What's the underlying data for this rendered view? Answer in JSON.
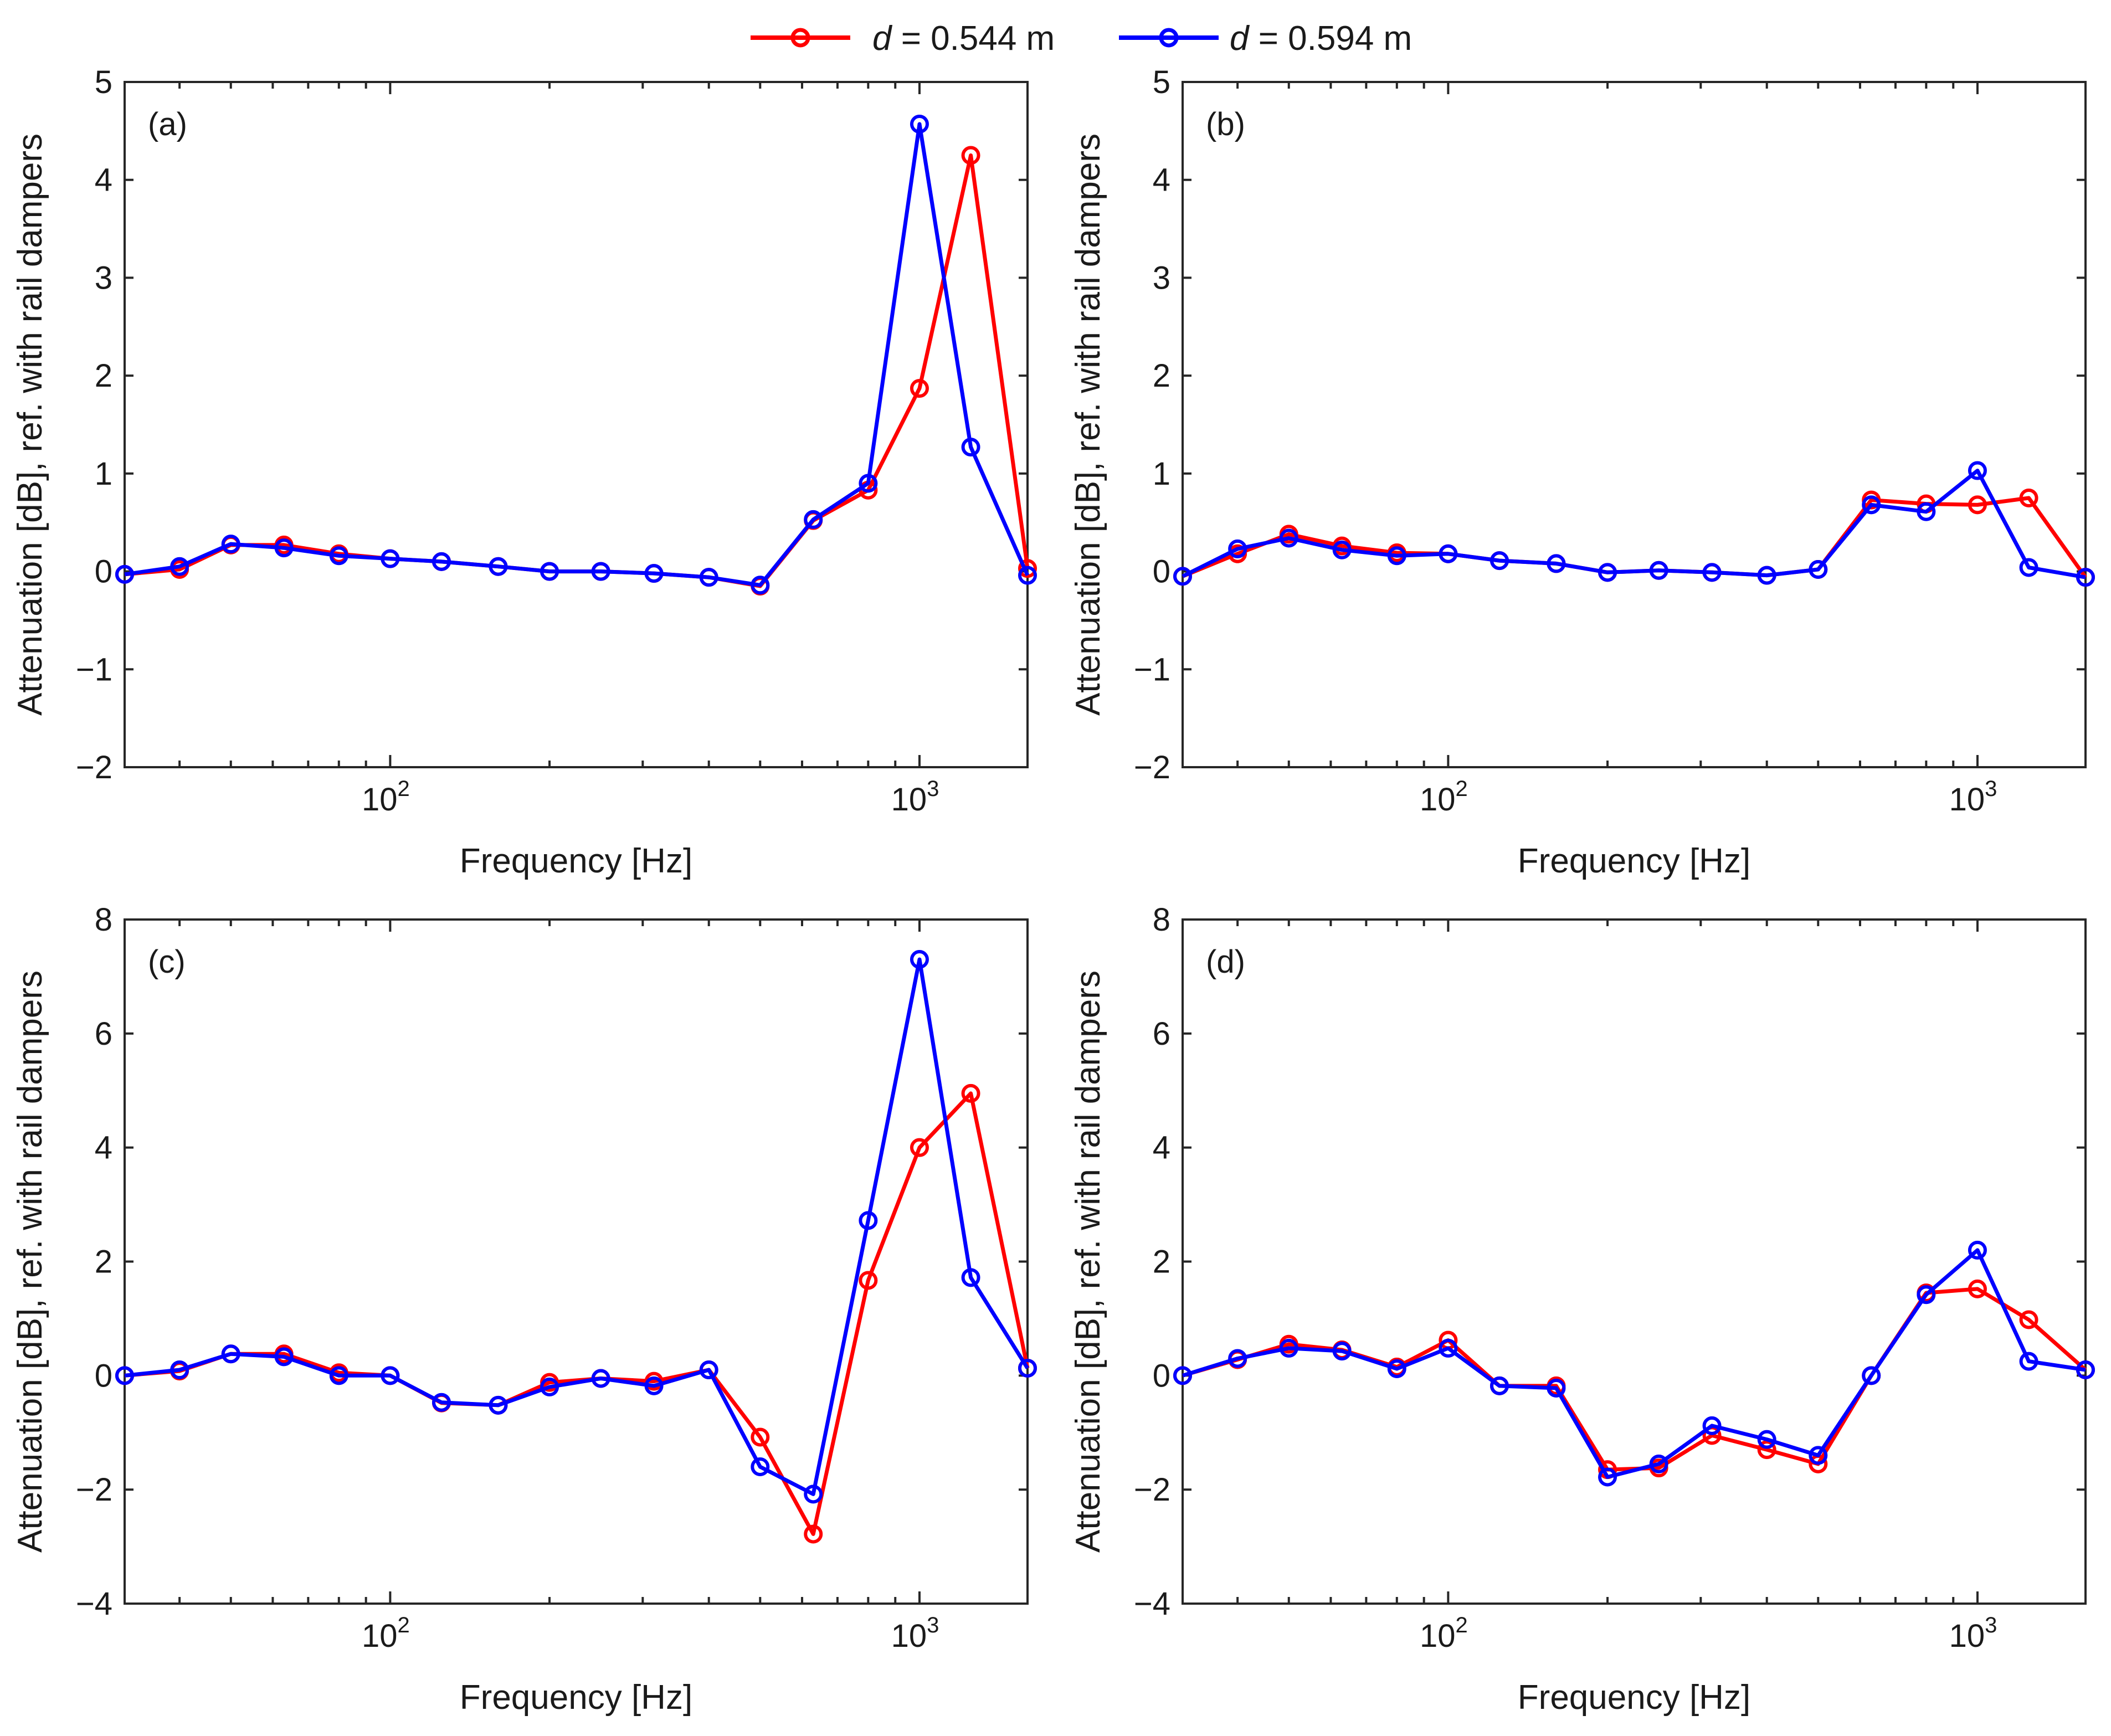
{
  "legend": {
    "entries": [
      {
        "prefix": "d",
        "label": " = 0.544 m",
        "color": "#ff0000"
      },
      {
        "prefix": "d",
        "label": " = 0.594 m",
        "color": "#0000ff"
      }
    ]
  },
  "chart_data": [
    {
      "type": "line",
      "panel_label": "(a)",
      "xlabel": "Frequency [Hz]",
      "ylabel": "Attenuation [dB], ref. with rail dampers",
      "xscale": "log",
      "xlim": [
        31.5,
        1600
      ],
      "ylim": [
        -2,
        5
      ],
      "yticks": [
        -2,
        -1,
        0,
        1,
        2,
        3,
        4,
        5
      ],
      "xticks": [
        {
          "value": 100,
          "base": "10",
          "exp": "2"
        },
        {
          "value": 1000,
          "base": "10",
          "exp": "3"
        }
      ],
      "x": [
        31.5,
        40,
        50,
        63,
        80,
        100,
        125,
        160,
        200,
        250,
        315,
        400,
        500,
        630,
        800,
        1000,
        1250,
        1600
      ],
      "series": [
        {
          "name": "d = 0.544 m",
          "color": "#ff0000",
          "values": [
            -0.03,
            0.02,
            0.27,
            0.27,
            0.18,
            0.13,
            0.1,
            0.05,
            0.0,
            0.0,
            -0.02,
            -0.06,
            -0.15,
            0.52,
            0.83,
            1.87,
            4.25,
            0.03
          ]
        },
        {
          "name": "d = 0.594 m",
          "color": "#0000ff",
          "values": [
            -0.03,
            0.05,
            0.28,
            0.24,
            0.16,
            0.13,
            0.1,
            0.05,
            0.0,
            0.0,
            -0.02,
            -0.06,
            -0.14,
            0.53,
            0.9,
            4.57,
            1.27,
            -0.04
          ]
        }
      ]
    },
    {
      "type": "line",
      "panel_label": "(b)",
      "xlabel": "Frequency [Hz]",
      "ylabel": "Attenuation [dB], ref. with rail dampers",
      "xscale": "log",
      "xlim": [
        31.5,
        1600
      ],
      "ylim": [
        -2,
        5
      ],
      "yticks": [
        -2,
        -1,
        0,
        1,
        2,
        3,
        4,
        5
      ],
      "xticks": [
        {
          "value": 100,
          "base": "10",
          "exp": "2"
        },
        {
          "value": 1000,
          "base": "10",
          "exp": "3"
        }
      ],
      "x": [
        31.5,
        40,
        50,
        63,
        80,
        100,
        125,
        160,
        200,
        250,
        315,
        400,
        500,
        630,
        800,
        1000,
        1250,
        1600
      ],
      "series": [
        {
          "name": "d = 0.544 m",
          "color": "#ff0000",
          "values": [
            -0.05,
            0.18,
            0.38,
            0.26,
            0.19,
            0.18,
            0.11,
            0.08,
            -0.01,
            0.01,
            -0.01,
            -0.04,
            0.02,
            0.73,
            0.69,
            0.68,
            0.75,
            -0.06
          ]
        },
        {
          "name": "d = 0.594 m",
          "color": "#0000ff",
          "values": [
            -0.05,
            0.23,
            0.34,
            0.22,
            0.16,
            0.18,
            0.11,
            0.08,
            -0.01,
            0.01,
            -0.01,
            -0.04,
            0.02,
            0.68,
            0.61,
            1.03,
            0.04,
            -0.06
          ]
        }
      ]
    },
    {
      "type": "line",
      "panel_label": "(c)",
      "xlabel": "Frequency [Hz]",
      "ylabel": "Attenuation [dB], ref. with rail dampers",
      "xscale": "log",
      "xlim": [
        31.5,
        1600
      ],
      "ylim": [
        -4,
        8
      ],
      "yticks": [
        -4,
        -2,
        0,
        2,
        4,
        6,
        8
      ],
      "xticks": [
        {
          "value": 100,
          "base": "10",
          "exp": "2"
        },
        {
          "value": 1000,
          "base": "10",
          "exp": "3"
        }
      ],
      "x": [
        31.5,
        40,
        50,
        63,
        80,
        100,
        125,
        160,
        200,
        250,
        315,
        400,
        500,
        630,
        800,
        1000,
        1250,
        1600
      ],
      "series": [
        {
          "name": "d = 0.544 m",
          "color": "#ff0000",
          "values": [
            0.0,
            0.08,
            0.38,
            0.38,
            0.05,
            0.0,
            -0.48,
            -0.52,
            -0.12,
            -0.05,
            -0.1,
            0.1,
            -1.08,
            -2.78,
            1.67,
            4.0,
            4.95,
            0.13
          ]
        },
        {
          "name": "d = 0.594 m",
          "color": "#0000ff",
          "values": [
            0.0,
            0.1,
            0.38,
            0.33,
            0.0,
            0.0,
            -0.47,
            -0.52,
            -0.2,
            -0.05,
            -0.18,
            0.1,
            -1.6,
            -2.08,
            2.72,
            7.3,
            1.72,
            0.13
          ]
        }
      ]
    },
    {
      "type": "line",
      "panel_label": "(d)",
      "xlabel": "Frequency [Hz]",
      "ylabel": "Attenuation [dB], ref. with rail dampers",
      "xscale": "log",
      "xlim": [
        31.5,
        1600
      ],
      "ylim": [
        -4,
        8
      ],
      "yticks": [
        -4,
        -2,
        0,
        2,
        4,
        6,
        8
      ],
      "xticks": [
        {
          "value": 100,
          "base": "10",
          "exp": "2"
        },
        {
          "value": 1000,
          "base": "10",
          "exp": "3"
        }
      ],
      "x": [
        31.5,
        40,
        50,
        63,
        80,
        100,
        125,
        160,
        200,
        250,
        315,
        400,
        500,
        630,
        800,
        1000,
        1250,
        1600
      ],
      "series": [
        {
          "name": "d = 0.544 m",
          "color": "#ff0000",
          "values": [
            0.0,
            0.28,
            0.55,
            0.45,
            0.15,
            0.62,
            -0.18,
            -0.18,
            -1.65,
            -1.62,
            -1.05,
            -1.3,
            -1.55,
            0.0,
            1.45,
            1.52,
            0.98,
            0.1
          ]
        },
        {
          "name": "d = 0.594 m",
          "color": "#0000ff",
          "values": [
            0.0,
            0.3,
            0.48,
            0.43,
            0.12,
            0.48,
            -0.18,
            -0.22,
            -1.78,
            -1.55,
            -0.88,
            -1.12,
            -1.4,
            0.0,
            1.42,
            2.2,
            0.25,
            0.1
          ]
        }
      ]
    }
  ]
}
